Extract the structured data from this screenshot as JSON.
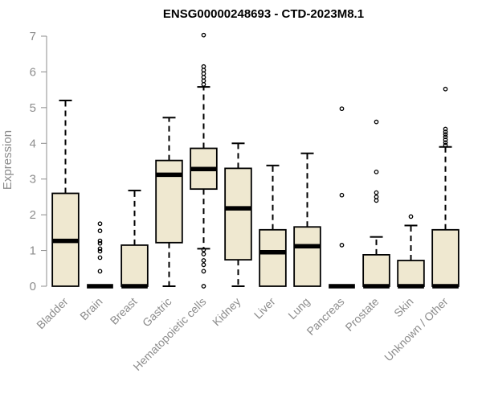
{
  "chart_data": {
    "type": "box",
    "title": "ENSG00000248693 - CTD-2023M8.1",
    "xlabel": "",
    "ylabel": "Expression",
    "ylim": [
      0,
      7
    ],
    "yticks": [
      0,
      1,
      2,
      3,
      4,
      5,
      6,
      7
    ],
    "box_fill": "#efe8d0",
    "categories": [
      "Bladder",
      "Brain",
      "Breast",
      "Gastric",
      "Hematopoietic cells",
      "Kidney",
      "Liver",
      "Lung",
      "Pancreas",
      "Prostate",
      "Skin",
      "Unknown / Other"
    ],
    "boxes": [
      {
        "min": 0,
        "q1": 0,
        "median": 1.27,
        "q3": 2.6,
        "max": 5.2,
        "outliers": []
      },
      {
        "min": 0,
        "q1": 0,
        "median": 0,
        "q3": 0,
        "max": 0,
        "outliers": [
          0.42,
          0.8,
          0.98,
          1.05,
          1.2,
          1.27,
          1.55,
          1.75
        ]
      },
      {
        "min": 0,
        "q1": 0,
        "median": 0,
        "q3": 1.15,
        "max": 2.68,
        "outliers": []
      },
      {
        "min": 0,
        "q1": 1.22,
        "median": 3.12,
        "q3": 3.52,
        "max": 4.72,
        "outliers": []
      },
      {
        "min": 1.05,
        "q1": 2.72,
        "median": 3.28,
        "q3": 3.86,
        "max": 5.58,
        "outliers": [
          0,
          0.42,
          0.6,
          0.72,
          0.9,
          1.02,
          5.65,
          5.75,
          5.85,
          5.95,
          6.05,
          6.15,
          7.03
        ]
      },
      {
        "min": 0,
        "q1": 0.74,
        "median": 2.18,
        "q3": 3.3,
        "max": 4.0,
        "outliers": []
      },
      {
        "min": 0,
        "q1": 0,
        "median": 0.95,
        "q3": 1.58,
        "max": 3.38,
        "outliers": []
      },
      {
        "min": 0,
        "q1": 0,
        "median": 1.12,
        "q3": 1.66,
        "max": 3.72,
        "outliers": []
      },
      {
        "min": 0,
        "q1": 0,
        "median": 0,
        "q3": 0,
        "max": 0,
        "outliers": [
          1.15,
          2.55,
          4.97
        ]
      },
      {
        "min": 0,
        "q1": 0,
        "median": 0,
        "q3": 0.88,
        "max": 1.38,
        "outliers": [
          2.4,
          2.5,
          2.62,
          3.2,
          4.6
        ]
      },
      {
        "min": 0,
        "q1": 0,
        "median": 0,
        "q3": 0.72,
        "max": 1.7,
        "outliers": [
          1.95
        ]
      },
      {
        "min": 0,
        "q1": 0,
        "median": 0,
        "q3": 1.58,
        "max": 3.9,
        "outliers": [
          3.95,
          4.02,
          4.1,
          4.18,
          4.25,
          4.32,
          4.4,
          5.52
        ]
      }
    ]
  }
}
